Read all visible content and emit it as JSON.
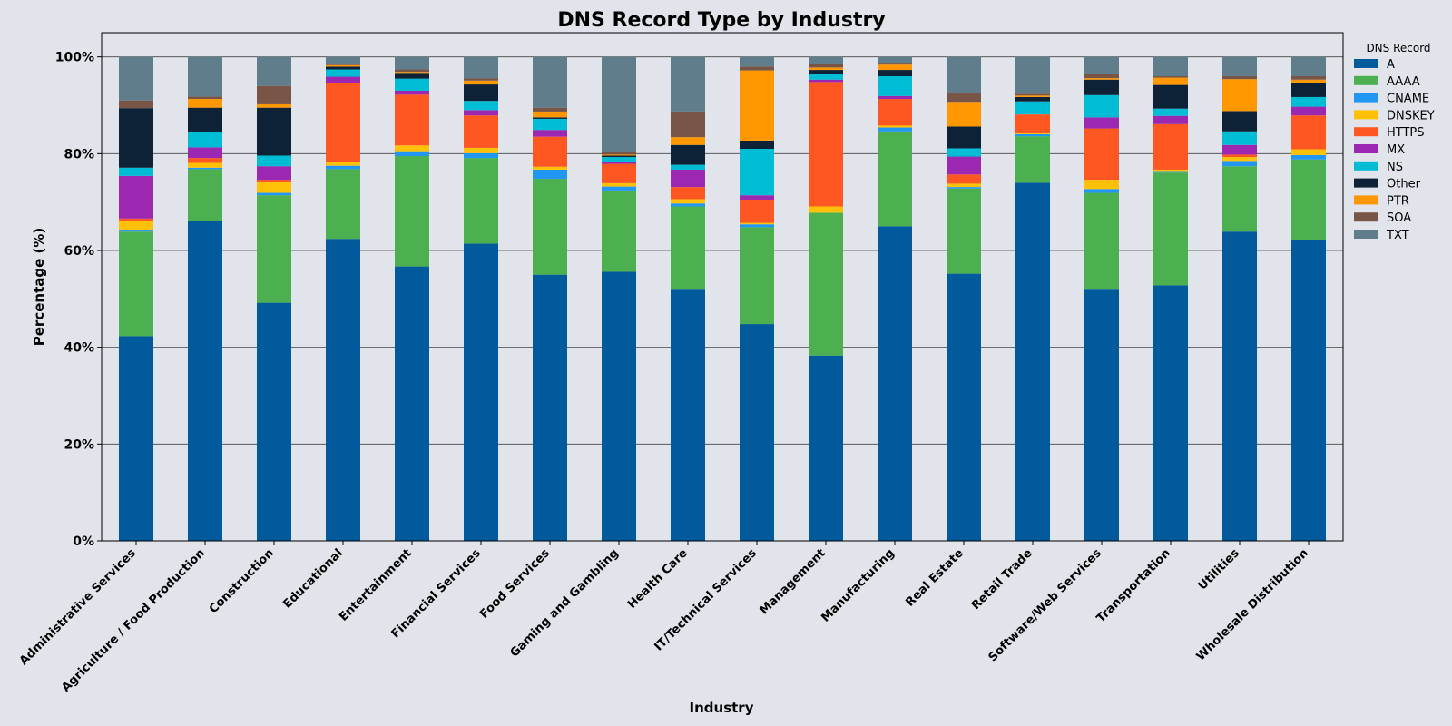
{
  "chart_data": {
    "type": "bar",
    "stacked": true,
    "title": "DNS Record Type by Industry",
    "xlabel": "Industry",
    "ylabel": "Percentage (%)",
    "ylim": [
      0,
      105
    ],
    "yticks": [
      0,
      20,
      40,
      60,
      80,
      100
    ],
    "ytick_labels": [
      "0%",
      "20%",
      "40%",
      "60%",
      "80%",
      "100%"
    ],
    "grid": "horizontal",
    "legend": {
      "title": "DNS Record",
      "placement": "right"
    },
    "categories": [
      "Administrative Services",
      "Agriculture / Food Production",
      "Construction",
      "Educational",
      "Entertainment",
      "Financial Services",
      "Food Services",
      "Gaming and Gambling",
      "Health Care",
      "IT/Technical Services",
      "Management",
      "Manufacturing",
      "Real Estate",
      "Retail Trade",
      "Software/Web Services",
      "Transportation",
      "Utilities",
      "Wholesale Distribution"
    ],
    "series": [
      {
        "name": "A",
        "color": "#015a9c",
        "values": [
          42.3,
          66.0,
          49.2,
          62.4,
          56.7,
          61.4,
          55.0,
          55.6,
          51.9,
          44.8,
          38.3,
          65.0,
          55.2,
          74.0,
          51.9,
          52.8,
          63.9,
          62.1
        ]
      },
      {
        "name": "AAAA",
        "color": "#4caf50",
        "values": [
          21.6,
          10.8,
          22.2,
          14.4,
          22.8,
          17.7,
          19.8,
          16.8,
          17.2,
          20.0,
          29.5,
          19.6,
          17.6,
          9.6,
          20.0,
          23.3,
          13.5,
          16.7
        ]
      },
      {
        "name": "CNAME",
        "color": "#2196f3",
        "values": [
          0.4,
          0.3,
          0.5,
          0.7,
          1.0,
          1.0,
          1.9,
          0.8,
          0.6,
          0.6,
          0.0,
          0.8,
          0.3,
          0.4,
          0.8,
          0.3,
          1.1,
          0.9
        ]
      },
      {
        "name": "DNSKEY",
        "color": "#ffc107",
        "values": [
          1.7,
          1.0,
          2.3,
          0.8,
          1.2,
          1.1,
          0.6,
          0.7,
          0.9,
          0.3,
          1.3,
          0.4,
          0.7,
          0.2,
          1.9,
          0.3,
          0.8,
          1.2
        ]
      },
      {
        "name": "HTTPS",
        "color": "#ff5722",
        "values": [
          0.6,
          1.0,
          0.4,
          16.3,
          10.5,
          6.7,
          6.2,
          4.0,
          2.5,
          4.8,
          25.7,
          5.5,
          1.9,
          3.9,
          10.6,
          9.4,
          0.5,
          7.0
        ]
      },
      {
        "name": "MX",
        "color": "#9c27b0",
        "values": [
          8.8,
          2.2,
          2.8,
          1.3,
          0.8,
          1.1,
          1.4,
          0.4,
          3.6,
          0.9,
          0.5,
          0.6,
          3.7,
          0.0,
          2.3,
          1.7,
          2.0,
          1.8
        ]
      },
      {
        "name": "NS",
        "color": "#00bcd4",
        "values": [
          1.7,
          3.2,
          2.2,
          1.5,
          2.5,
          1.9,
          2.3,
          1.0,
          1.0,
          9.6,
          1.2,
          4.1,
          1.7,
          2.7,
          4.6,
          1.5,
          2.8,
          2.0
        ]
      },
      {
        "name": "Other",
        "color": "#0d2137",
        "values": [
          12.3,
          5.0,
          9.9,
          0.6,
          1.2,
          3.4,
          0.3,
          0.3,
          4.1,
          1.7,
          0.8,
          1.3,
          4.5,
          0.9,
          3.2,
          4.9,
          4.2,
          2.8
        ]
      },
      {
        "name": "PTR",
        "color": "#ff9800",
        "values": [
          0.0,
          1.8,
          0.7,
          0.3,
          0.2,
          0.8,
          1.2,
          0.2,
          1.6,
          14.5,
          0.5,
          1.1,
          5.1,
          0.3,
          0.3,
          1.5,
          6.6,
          0.8
        ]
      },
      {
        "name": "SOA",
        "color": "#795548",
        "values": [
          1.6,
          0.5,
          3.8,
          0.3,
          0.5,
          0.5,
          0.8,
          0.5,
          5.3,
          0.8,
          0.7,
          0.4,
          1.8,
          0.4,
          0.8,
          0.3,
          0.6,
          0.7
        ]
      },
      {
        "name": "TXT",
        "color": "#607d8b",
        "values": [
          9.0,
          8.2,
          6.0,
          1.4,
          2.6,
          4.4,
          10.5,
          19.7,
          11.3,
          2.0,
          1.5,
          1.2,
          7.5,
          7.6,
          3.6,
          4.0,
          4.0,
          4.0
        ]
      }
    ]
  }
}
